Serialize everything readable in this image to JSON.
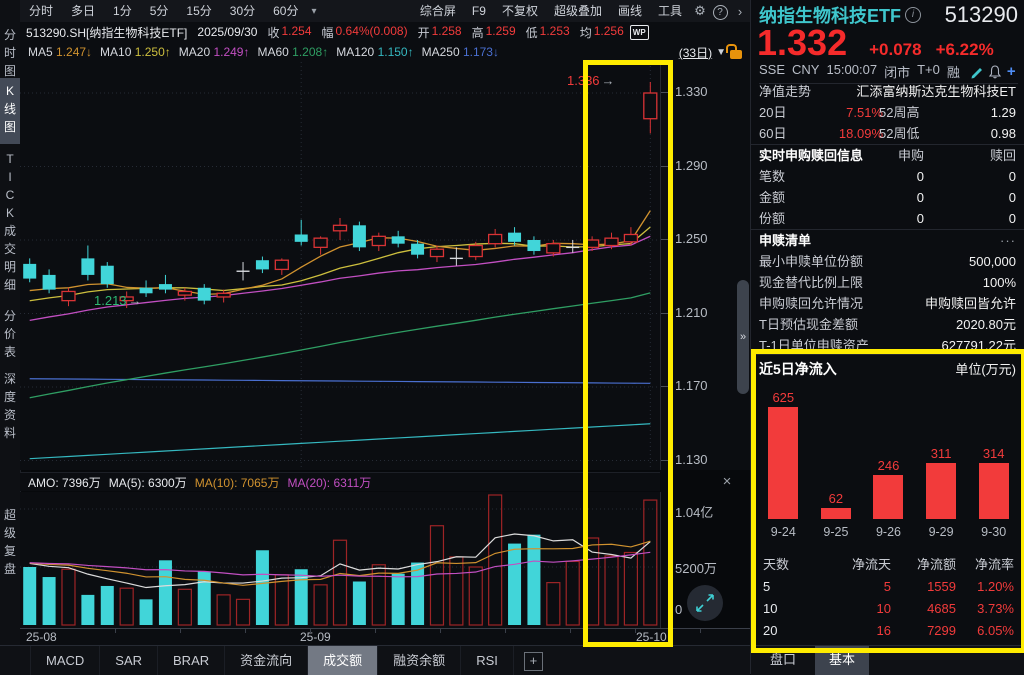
{
  "toolbar": {
    "timeframes": [
      "分时",
      "多日",
      "1分",
      "5分",
      "15分",
      "30分",
      "60分"
    ],
    "caret": "▾",
    "actions": [
      "综合屏",
      "F9",
      "不复权",
      "超级叠加",
      "画线",
      "工具"
    ],
    "gear_icon": "⚙",
    "help_icon": "?",
    "chevron_icon": "›"
  },
  "info": {
    "symbol": "513290.SH[纳指生物科技ETF]",
    "date": "2025/09/30",
    "fields": [
      {
        "label": "收",
        "value": "1.254"
      },
      {
        "label": "幅",
        "value": "0.64%(0.008)"
      },
      {
        "label": "开",
        "value": "1.258"
      },
      {
        "label": "高",
        "value": "1.259"
      },
      {
        "label": "低",
        "value": "1.253"
      },
      {
        "label": "均",
        "value": "1.256"
      }
    ],
    "wp_badge": "WP"
  },
  "ma_bar": {
    "items": [
      {
        "label": "MA5",
        "value": "1.247",
        "arrow": "↓",
        "color": "#d0922f"
      },
      {
        "label": "MA10",
        "value": "1.250",
        "arrow": "↑",
        "color": "#cdbf3e"
      },
      {
        "label": "MA20",
        "value": "1.249",
        "arrow": "↑",
        "color": "#c24fc2"
      },
      {
        "label": "MA60",
        "value": "1.208",
        "arrow": "↑",
        "color": "#2f9e63"
      },
      {
        "label": "MA120",
        "value": "1.150",
        "arrow": "↑",
        "color": "#35b8c0"
      },
      {
        "label": "MA250",
        "value": "1.173",
        "arrow": "↓",
        "color": "#4a6fd0"
      }
    ],
    "period": "(33日)",
    "caret": "▼"
  },
  "sidebar": {
    "items": [
      {
        "label": "分时图",
        "active": false
      },
      {
        "label": "K线图",
        "active": true
      },
      {
        "label": "TICK",
        "active": false
      },
      {
        "label": "成交明细",
        "active": false
      },
      {
        "label": "分价表",
        "active": false
      },
      {
        "label": "深度资料",
        "active": false
      },
      {
        "label": "超级复盘",
        "active": false
      }
    ]
  },
  "volume_header": {
    "amo": "AMO: 7396万",
    "ma5": "MA(5): 6300万",
    "ma10": "MA(10): 7065万",
    "ma20": "MA(20): 6311万",
    "close_icon": "×"
  },
  "chart_data": {
    "type": "candlestick",
    "y_ticks": [
      "1.330",
      "1.290",
      "1.250",
      "1.210",
      "1.170",
      "1.130"
    ],
    "y_tick_prices": [
      1.33,
      1.29,
      1.25,
      1.21,
      1.17,
      1.13
    ],
    "x_labels": [
      "25-08",
      "25-09",
      "25-10"
    ],
    "high_annotation": "1.336",
    "low_annotation": "1.213",
    "up_color": "#d93335",
    "down_color": "#41d5d9",
    "doji_color": "#d7dade",
    "candles": [
      [
        1.237,
        1.24,
        1.227,
        1.229
      ],
      [
        1.231,
        1.234,
        1.221,
        1.223
      ],
      [
        1.217,
        1.224,
        1.214,
        1.222
      ],
      [
        1.24,
        1.247,
        1.228,
        1.231
      ],
      [
        1.236,
        1.238,
        1.224,
        1.226
      ],
      [
        1.217,
        1.222,
        1.213,
        1.219
      ],
      [
        1.224,
        1.228,
        1.219,
        1.221
      ],
      [
        1.226,
        1.231,
        1.221,
        1.223
      ],
      [
        1.22,
        1.224,
        1.217,
        1.222
      ],
      [
        1.224,
        1.226,
        1.215,
        1.217
      ],
      [
        1.219,
        1.223,
        1.216,
        1.221
      ],
      [
        1.233,
        1.238,
        1.228,
        1.233
      ],
      [
        1.239,
        1.241,
        1.232,
        1.234
      ],
      [
        1.234,
        1.24,
        1.231,
        1.239
      ],
      [
        1.253,
        1.261,
        1.247,
        1.249
      ],
      [
        1.246,
        1.252,
        1.242,
        1.251
      ],
      [
        1.255,
        1.262,
        1.25,
        1.258
      ],
      [
        1.258,
        1.26,
        1.244,
        1.246
      ],
      [
        1.247,
        1.254,
        1.244,
        1.252
      ],
      [
        1.252,
        1.255,
        1.246,
        1.248
      ],
      [
        1.248,
        1.25,
        1.24,
        1.242
      ],
      [
        1.241,
        1.247,
        1.238,
        1.245
      ],
      [
        1.24,
        1.246,
        1.236,
        1.24
      ],
      [
        1.241,
        1.249,
        1.239,
        1.247
      ],
      [
        1.248,
        1.256,
        1.246,
        1.253
      ],
      [
        1.254,
        1.257,
        1.247,
        1.249
      ],
      [
        1.25,
        1.252,
        1.242,
        1.244
      ],
      [
        1.243,
        1.25,
        1.241,
        1.248
      ],
      [
        1.246,
        1.25,
        1.243,
        1.246
      ],
      [
        1.246,
        1.252,
        1.244,
        1.25
      ],
      [
        1.247,
        1.254,
        1.245,
        1.251
      ],
      [
        1.249,
        1.257,
        1.247,
        1.253
      ],
      [
        1.316,
        1.336,
        1.308,
        1.33
      ]
    ],
    "volumes": [
      5200,
      4300,
      5000,
      2700,
      3500,
      3300,
      2300,
      5800,
      3200,
      4800,
      2700,
      2300,
      6700,
      4500,
      5000,
      3600,
      7600,
      3900,
      5400,
      4600,
      5600,
      8900,
      6100,
      5200,
      13300,
      7300,
      8100,
      3800,
      5700,
      7800,
      6200,
      6500,
      11200
    ],
    "volume_up_color": "#9e2426",
    "volume_down_color": "#41d5d9",
    "volume_y_ticks": [
      "1.04亿",
      "5200万",
      "0"
    ],
    "ma_lines": [
      {
        "n": 5,
        "color": "#d0922f"
      },
      {
        "n": 10,
        "color": "#cdbf3e"
      },
      {
        "n": 20,
        "color": "#c24fc2"
      },
      {
        "n": 60,
        "color": "#2f9e63"
      }
    ],
    "static_lines": [
      {
        "name": "MA120",
        "color": "#35b8c0",
        "from": 1.131,
        "to": 1.15
      },
      {
        "name": "MA250",
        "color": "#4a6fd0",
        "from": 1.1745,
        "to": 1.172
      }
    ],
    "volume_ma_lines": [
      {
        "n": 5,
        "color": "#dcdcdc"
      },
      {
        "n": 10,
        "color": "#d0922f"
      },
      {
        "n": 20,
        "color": "#c24fc2"
      }
    ]
  },
  "bottom_tabs": {
    "items": [
      {
        "label": "MACD",
        "active": false
      },
      {
        "label": "SAR",
        "active": false
      },
      {
        "label": "BRAR",
        "active": false
      },
      {
        "label": "资金流向",
        "active": false
      },
      {
        "label": "成交额",
        "active": true
      },
      {
        "label": "融资余额",
        "active": false
      },
      {
        "label": "RSI",
        "active": false
      }
    ],
    "add_icon": "+"
  },
  "quote": {
    "name": "纳指生物科技ETF",
    "info_icon": "i",
    "code": "513290",
    "price": "1.332",
    "change": "+0.078",
    "pct": "+6.22%",
    "meta": [
      "SSE",
      "CNY",
      "15:00:07",
      "闭市",
      "T+0",
      "融"
    ],
    "nav": {
      "label": "净值走势",
      "value": "汇添富纳斯达克生物科技ET"
    },
    "perf": [
      {
        "label": "20日",
        "value": "7.51%",
        "label2": "52周高",
        "value2": "1.29"
      },
      {
        "label": "60日",
        "value": "18.09%",
        "label2": "52周低",
        "value2": "0.98"
      }
    ],
    "rt": {
      "title": "实时申购赎回信息",
      "col1": "申购",
      "col2": "赎回",
      "rows": [
        {
          "label": "笔数",
          "v1": "0",
          "v2": "0"
        },
        {
          "label": "金额",
          "v1": "0",
          "v2": "0"
        },
        {
          "label": "份额",
          "v1": "0",
          "v2": "0"
        }
      ]
    },
    "list": {
      "title": "申赎清单",
      "more": "···",
      "rows": [
        {
          "label": "最小申赎单位份额",
          "value": "500,000"
        },
        {
          "label": "现金替代比例上限",
          "value": "100%"
        },
        {
          "label": "申购赎回允许情况",
          "value": "申购赎回皆允许"
        },
        {
          "label": "T日预估现金差额",
          "value": "2020.80元"
        },
        {
          "label": "T-1日单位申赎资产",
          "value": "627791.22元"
        }
      ]
    }
  },
  "inflow": {
    "title": "近5日净流入",
    "unit": "单位(万元)",
    "bar_color": "#f23b3b",
    "categories": [
      "9-24",
      "9-25",
      "9-26",
      "9-29",
      "9-30"
    ],
    "values": [
      625,
      62,
      246,
      311,
      314
    ]
  },
  "flow_table": {
    "headers": [
      "天数",
      "净流天",
      "净流额",
      "净流率"
    ],
    "rows": [
      [
        "5",
        "5",
        "1559",
        "1.20%"
      ],
      [
        "10",
        "10",
        "4685",
        "3.73%"
      ],
      [
        "20",
        "16",
        "7299",
        "6.05%"
      ]
    ]
  },
  "panel_tabs": [
    {
      "label": "盘口",
      "active": false
    },
    {
      "label": "基本",
      "active": true
    }
  ],
  "misc": {
    "divider_chevron": "»"
  }
}
